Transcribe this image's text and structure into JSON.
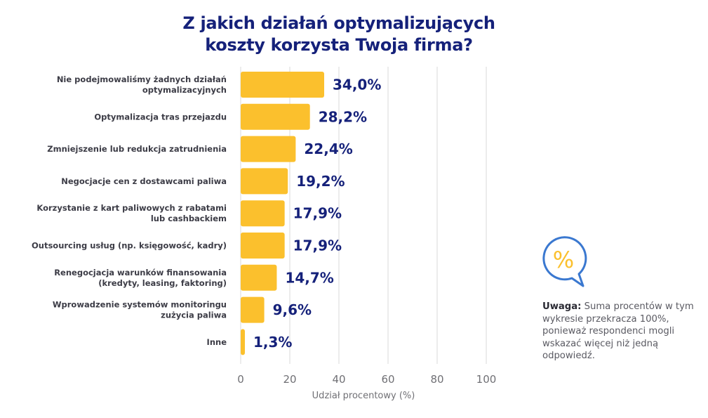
{
  "title_lines": [
    "Z jakich działań optymalizujących",
    "koszty korzysta Twoja firma?"
  ],
  "colors": {
    "bar": "#fbc02d",
    "value_text": "#15217a",
    "grid": "#ececec",
    "icon_ring": "#3a78d0",
    "icon_symbol": "#fbc02d"
  },
  "chart_data": {
    "type": "bar",
    "orientation": "horizontal",
    "title": "Z jakich działań optymalizujących koszty korzysta Twoja firma?",
    "categories": [
      [
        "Nie podejmowaliśmy żadnych działań",
        "optymalizacyjnych"
      ],
      [
        "Optymalizacja tras przejazdu"
      ],
      [
        "Zmniejszenie lub redukcja zatrudnienia"
      ],
      [
        "Negocjacje cen z dostawcami paliwa"
      ],
      [
        "Korzystanie z kart paliwowych z rabatami",
        "lub cashbackiem"
      ],
      [
        "Outsourcing usług (np. księgowość, kadry)"
      ],
      [
        "Renegocjacja warunków finansowania",
        "(kredyty, leasing, faktoring)"
      ],
      [
        "Wprowadzenie systemów monitoringu",
        "zużycia paliwa"
      ],
      [
        "Inne"
      ]
    ],
    "values": [
      34.0,
      28.2,
      22.4,
      19.2,
      17.9,
      17.9,
      14.7,
      9.6,
      1.3
    ],
    "value_labels": [
      "34,0%",
      "28,2%",
      "22,4%",
      "19,2%",
      "17,9%",
      "17,9%",
      "14,7%",
      "9,6%",
      "1,3%"
    ],
    "xlabel": "Udział procentowy (%)",
    "ylabel": "",
    "xlim": [
      0,
      100
    ],
    "xticks": [
      0,
      20,
      40,
      60,
      80,
      100
    ],
    "grid": "vertical"
  },
  "note": {
    "icon": "percent-speech-bubble-icon",
    "icon_symbol": "%",
    "label": "Uwaga:",
    "text": " Suma procentów w tym wykresie przekracza 100%, ponieważ respondenci mogli wskazać więcej niż jedną odpowiedź."
  }
}
